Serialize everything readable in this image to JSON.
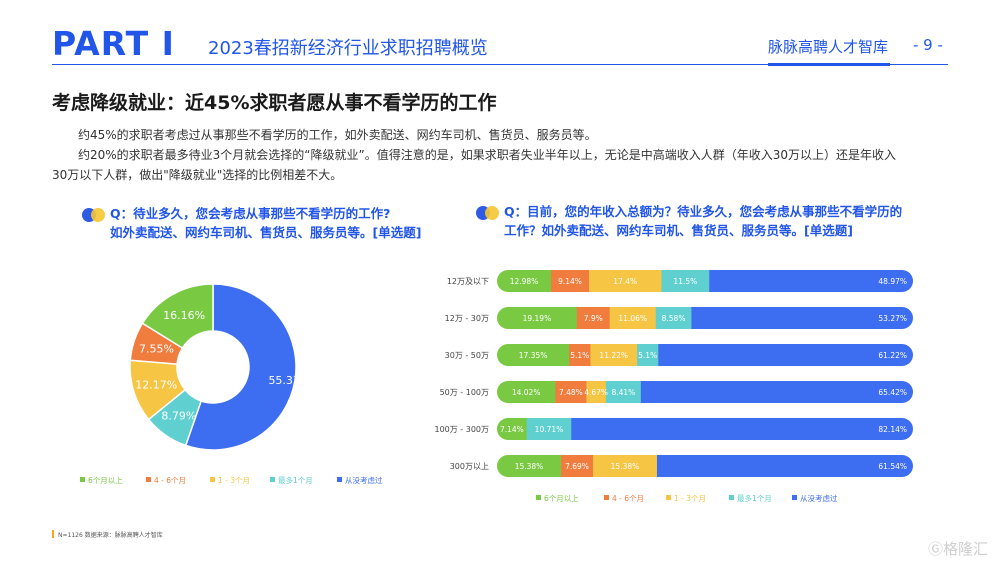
{
  "header": {
    "part": "PART Ⅰ",
    "title": "2023春招新经济行业求职招聘概览",
    "brand": "脉脉高聘人才智库",
    "page": "- 9 -"
  },
  "headline": "考虑降级就业：近45%求职者愿从事不看学历的工作",
  "paragraphs": [
    "约45%的求职者考虑过从事那些不看学历的工作，如外卖配送、网约车司机、售货员、服务员等。",
    "约20%的求职者最多待业3个月就会选择的“降级就业”。值得注意的是，如果求职者失业半年以上，无论是中高端收入人群（年收入30万以上）还是年收入",
    "30万以下人群，做出\"降级就业\"选择的比例相差不大。"
  ],
  "question_left": {
    "line1": "Q：待业多久，您会考虑从事那些不看学历的工作?",
    "line2": "如外卖配送、网约车司机、售货员、服务员等。[单选题]"
  },
  "question_right": {
    "line1": "Q：目前，您的年收入总额为？待业多久，您会考虑从事那些不看学历的",
    "line2": "工作？如外卖配送、网约车司机、售货员、服务员等。[单选题]"
  },
  "footer": "N=1126    数据来源：脉脉高聘人才智库",
  "watermark": "Ⓖ格隆汇",
  "colors": {
    "accent": "#2156e8",
    "s1": "#7ac943",
    "s2": "#f07c3e",
    "s3": "#f7c544",
    "s4": "#5fd0cf",
    "s5": "#3d6df0"
  },
  "chart_data": [
    {
      "type": "pie",
      "donut": true,
      "categories": [
        "6个月以上",
        "4 - 6个月",
        "1 - 3个月",
        "最多1个月",
        "从没考虑过"
      ],
      "values": [
        16.16,
        7.55,
        12.17,
        8.79,
        55.33
      ],
      "labels": [
        "16.16%",
        "7.55%",
        "12.17%",
        "8.79%",
        "55.33%"
      ],
      "legend_position": "bottom"
    },
    {
      "type": "bar",
      "orientation": "horizontal",
      "stacked": true,
      "categories": [
        "12万及以下",
        "12万 - 30万",
        "30万 - 50万",
        "50万 - 100万",
        "100万 - 300万",
        "300万以上"
      ],
      "series": [
        {
          "name": "6个月以上",
          "values": [
            12.98,
            19.19,
            17.35,
            14.02,
            7.14,
            15.38
          ],
          "labels": [
            "12.98%",
            "19.19%",
            "17.35%",
            "14.02%",
            "7.14%",
            "15.38%"
          ]
        },
        {
          "name": "4 - 6个月",
          "values": [
            9.14,
            7.9,
            5.1,
            7.48,
            0,
            7.69
          ],
          "labels": [
            "9.14%",
            "7.9%",
            "5.1%",
            "7.48%",
            "",
            "7.69%"
          ]
        },
        {
          "name": "1 - 3个月",
          "values": [
            17.4,
            11.06,
            11.22,
            4.67,
            0,
            15.38
          ],
          "labels": [
            "17.4%",
            "11.06%",
            "11.22%",
            "4.67%",
            "",
            "15.38%"
          ]
        },
        {
          "name": "最多1个月",
          "values": [
            11.5,
            8.58,
            5.1,
            8.41,
            10.71,
            0
          ],
          "labels": [
            "11.5%",
            "8.58%",
            "5.1%",
            "8.41%",
            "10.71%",
            ""
          ]
        },
        {
          "name": "从没考虑过",
          "values": [
            48.97,
            53.27,
            61.22,
            65.42,
            82.14,
            61.54
          ],
          "labels": [
            "48.97%",
            "53.27%",
            "61.22%",
            "65.42%",
            "82.14%",
            "61.54%"
          ]
        }
      ],
      "xlim": [
        0,
        100
      ],
      "legend_position": "bottom"
    }
  ]
}
